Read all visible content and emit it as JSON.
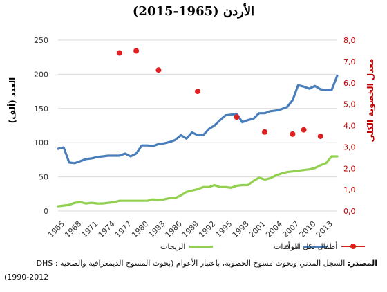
{
  "chart_data": {
    "type": "line",
    "title": "الأردن (1965-2015)",
    "ylabel_left": "(العدد (ألف",
    "ylabel_right": "معدل الخصوبة الكلي",
    "ylim_left": [
      0,
      250
    ],
    "ylim_right": [
      0,
      8
    ],
    "left_ticks": [
      "0",
      "50",
      "100",
      "150",
      "200",
      "250"
    ],
    "right_ticks": [
      "0,0",
      "1,0",
      "2,0",
      "3,0",
      "4,0",
      "5,0",
      "6,0",
      "7,0",
      "8,0"
    ],
    "x_ticks": [
      "1965",
      "1968",
      "1971",
      "1974",
      "1977",
      "1980",
      "1983",
      "1986",
      "1989",
      "1992",
      "1995",
      "1998",
      "2001",
      "2004",
      "2007",
      "2010",
      "2013"
    ],
    "xlim": [
      1965,
      2015
    ],
    "grid": "horizontal",
    "legend_position": "bottom",
    "series": [
      {
        "name": "الولادات",
        "axis": "left",
        "color": "#4a7ebb",
        "x": [
          1965,
          1966,
          1967,
          1968,
          1969,
          1970,
          1971,
          1972,
          1973,
          1974,
          1975,
          1976,
          1977,
          1978,
          1979,
          1980,
          1981,
          1982,
          1983,
          1984,
          1985,
          1986,
          1987,
          1988,
          1989,
          1990,
          1991,
          1992,
          1993,
          1994,
          1995,
          1996,
          1997,
          1998,
          1999,
          2000,
          2001,
          2002,
          2003,
          2004,
          2005,
          2006,
          2007,
          2008,
          2009,
          2010,
          2011,
          2012,
          2013,
          2014,
          2015
        ],
        "values": [
          91,
          93,
          71,
          70,
          73,
          76,
          77,
          79,
          80,
          81,
          81,
          81,
          84,
          80,
          84,
          96,
          96,
          95,
          98,
          99,
          101,
          104,
          111,
          106,
          115,
          111,
          111,
          120,
          125,
          133,
          140,
          141,
          142,
          130,
          133,
          135,
          143,
          143,
          146,
          147,
          149,
          152,
          162,
          184,
          182,
          179,
          183,
          178,
          177,
          177,
          198
        ]
      },
      {
        "name": "الزيجات",
        "axis": "left",
        "color": "#92d050",
        "x": [
          1965,
          1966,
          1967,
          1968,
          1969,
          1970,
          1971,
          1972,
          1973,
          1974,
          1975,
          1976,
          1977,
          1978,
          1979,
          1980,
          1981,
          1982,
          1983,
          1984,
          1985,
          1986,
          1987,
          1988,
          1989,
          1990,
          1991,
          1992,
          1993,
          1994,
          1995,
          1996,
          1997,
          1998,
          1999,
          2000,
          2001,
          2002,
          2003,
          2004,
          2005,
          2006,
          2007,
          2008,
          2009,
          2010,
          2011,
          2012,
          2013,
          2014,
          2015
        ],
        "values": [
          7,
          8,
          9,
          12,
          13,
          11,
          12,
          11,
          11,
          12,
          13,
          15,
          15,
          15,
          15,
          15,
          15,
          17,
          16,
          17,
          19,
          19,
          23,
          28,
          30,
          32,
          35,
          35,
          38,
          35,
          35,
          34,
          37,
          38,
          38,
          44,
          49,
          46,
          48,
          52,
          55,
          57,
          58,
          59,
          60,
          61,
          63,
          67,
          70,
          80,
          80
        ]
      },
      {
        "name": "أطفال لكل امرأة",
        "axis": "right",
        "color": "#e02020",
        "style": "markers",
        "x": [
          1976,
          1979,
          1983,
          1990,
          1997,
          2002,
          2007,
          2009,
          2012
        ],
        "values": [
          7.4,
          7.5,
          6.6,
          5.6,
          4.4,
          3.7,
          3.6,
          3.8,
          3.5
        ]
      }
    ]
  },
  "source": {
    "label": "المصدر:",
    "text_line1": "السجل المدني وبحوث مسوح الخصوبة، باعتبار الأعوام (بحوث المسوح الديمغرافية والصحية  : DHS",
    "text_line2": "(1990-2012"
  }
}
